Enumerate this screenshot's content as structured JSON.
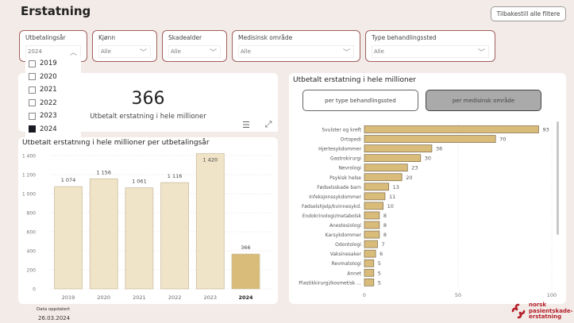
{
  "header": {
    "title": "Erstatning",
    "reset_label": "Tilbakestill alle filtere"
  },
  "filters": [
    {
      "label": "Utbetalingsår",
      "value": "2024",
      "open": true
    },
    {
      "label": "Kjønn",
      "value": "Alle"
    },
    {
      "label": "Skadealder",
      "value": "Alle"
    },
    {
      "label": "Medisinsk område",
      "value": "Alle"
    },
    {
      "label": "Type behandlingssted",
      "value": "Alle"
    }
  ],
  "year_options": [
    {
      "label": "2019",
      "checked": false
    },
    {
      "label": "2020",
      "checked": false
    },
    {
      "label": "2021",
      "checked": false
    },
    {
      "label": "2022",
      "checked": false
    },
    {
      "label": "2023",
      "checked": false
    },
    {
      "label": "2024",
      "checked": true
    }
  ],
  "kpi": {
    "value": "366",
    "label": "Utbetalt erstatning i hele millioner"
  },
  "right_panel": {
    "title": "Utbetalt erstatning i hele millioner",
    "toggle": [
      "per type behandlingssted",
      "per medisinsk område"
    ],
    "active_toggle": 1
  },
  "footer": {
    "date_label": "Data oppdatert",
    "date": "26.03.2024",
    "logo_text": "norsk pasientskade-erstatning"
  },
  "colors": {
    "background": "#f3ebe8",
    "bar_light": "#efe3c8",
    "bar_selected": "#d9bc7a",
    "filter_border": "#a0605c",
    "logo": "#b4202a"
  },
  "chart_data": [
    {
      "type": "bar",
      "title": "Utbetalt erstatning i hele millioner per utbetalingsår",
      "categories": [
        "2019",
        "2020",
        "2021",
        "2022",
        "2023",
        "2024"
      ],
      "values": [
        1074,
        1156,
        1061,
        1116,
        1420,
        366
      ],
      "value_labels": [
        "1 074",
        "1 156",
        "1 061",
        "1 116",
        "1 420",
        "366"
      ],
      "selected": "2024",
      "ylim": [
        0,
        1400
      ],
      "yticks": [
        0,
        200,
        400,
        600,
        800,
        1000,
        1200,
        1400
      ],
      "ytick_labels": [
        "0",
        "200",
        "400",
        "600",
        "800",
        "1 000",
        "1 200",
        "1 400"
      ],
      "grid": true
    },
    {
      "type": "bar",
      "orientation": "horizontal",
      "categories": [
        "Svulster og kreft",
        "Ortopedi",
        "Hjertesykdommer",
        "Gastrokirurgi",
        "Nevrologi",
        "Psykisk helse",
        "Fødselsskade barn",
        "Infeksjonssykdommer",
        "Fødselshjelp/kvinnesykd.",
        "Endokrinologi/metabolsk",
        "Anestesiologi",
        "Karsykdommer",
        "Odontologi",
        "Vaksinesaker",
        "Revmatologi",
        "Annet",
        "Plastikkirurgi/kosmetisk ..."
      ],
      "values": [
        93,
        70,
        36,
        30,
        23,
        20,
        13,
        11,
        10,
        8,
        8,
        8,
        7,
        6,
        5,
        5,
        5
      ],
      "xlim": [
        0,
        100
      ],
      "xticks": [
        0,
        50,
        100
      ],
      "grid": true
    }
  ]
}
